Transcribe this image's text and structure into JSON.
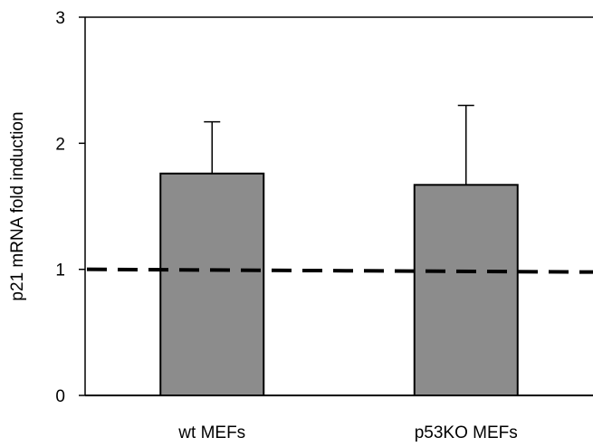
{
  "chart_data": {
    "type": "bar",
    "categories": [
      "wt MEFs",
      "p53KO MEFs"
    ],
    "values": [
      1.76,
      1.67
    ],
    "error_upper": [
      2.17,
      2.3
    ],
    "ylabel": "p21 mRNA fold induction",
    "xlabel": "",
    "ylim": [
      0,
      3
    ],
    "yticks": [
      "0",
      "1",
      "2",
      "3"
    ],
    "reference_line": {
      "y": 1,
      "style": "dashed"
    },
    "grid": false,
    "bar_color": "#8c8c8c",
    "edge_color": "#000000"
  }
}
